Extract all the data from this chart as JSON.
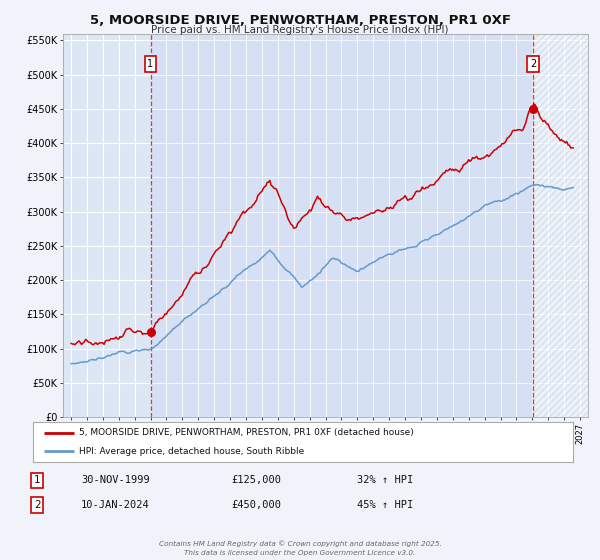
{
  "title": "5, MOORSIDE DRIVE, PENWORTHAM, PRESTON, PR1 0XF",
  "subtitle": "Price paid vs. HM Land Registry's House Price Index (HPI)",
  "bg_color": "#f0f4fa",
  "plot_bg_color": "#dce6f5",
  "grid_color": "#ffffff",
  "red_line_color": "#cc0000",
  "blue_line_color": "#6699cc",
  "marker1_date_num": 2000.0,
  "marker2_date_num": 2024.04,
  "marker1_value": 125000,
  "marker2_value": 450000,
  "xmin": 1994.5,
  "xmax": 2027.5,
  "ymin": 0,
  "ymax": 560000,
  "yticks": [
    0,
    50000,
    100000,
    150000,
    200000,
    250000,
    300000,
    350000,
    400000,
    450000,
    500000,
    550000
  ],
  "ytick_labels": [
    "£0",
    "£50K",
    "£100K",
    "£150K",
    "£200K",
    "£250K",
    "£300K",
    "£350K",
    "£400K",
    "£450K",
    "£500K",
    "£550K"
  ],
  "legend_label_red": "5, MOORSIDE DRIVE, PENWORTHAM, PRESTON, PR1 0XF (detached house)",
  "legend_label_blue": "HPI: Average price, detached house, South Ribble",
  "table_row1": [
    "1",
    "30-NOV-1999",
    "£125,000",
    "32% ↑ HPI"
  ],
  "table_row2": [
    "2",
    "10-JAN-2024",
    "£450,000",
    "45% ↑ HPI"
  ],
  "footer": "Contains HM Land Registry data © Crown copyright and database right 2025.\nThis data is licensed under the Open Government Licence v3.0."
}
